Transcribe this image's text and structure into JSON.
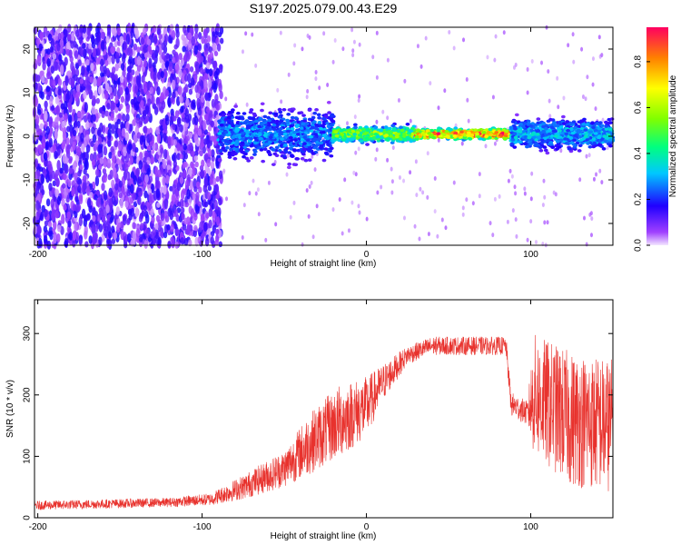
{
  "title": "S197.2025.079.00.43.E29",
  "chart_data": [
    {
      "type": "heatmap",
      "xlabel": "Height of straight line (km)",
      "ylabel": "Frequency (Hz)",
      "xlim": [
        -202,
        150
      ],
      "ylim": [
        -25,
        25
      ],
      "xticks": [
        -200,
        -100,
        0,
        100
      ],
      "yticks": [
        -20,
        -10,
        0,
        10,
        20
      ],
      "colorbar": {
        "label": "Normalized spectral amplitude",
        "range": [
          0,
          0.95
        ],
        "ticks": [
          0,
          0.2,
          0.4,
          0.6,
          0.8
        ]
      },
      "ridge": {
        "frequency": 0.5,
        "segments": [
          {
            "x_start": -90,
            "x_end": -20,
            "amplitude": 0.3,
            "spread": 5
          },
          {
            "x_start": -20,
            "x_end": 30,
            "amplitude": 0.6,
            "spread": 1.5
          },
          {
            "x_start": 30,
            "x_end": 88,
            "amplitude": 0.9,
            "spread": 1
          },
          {
            "x_start": 88,
            "x_end": 150,
            "amplitude": 0.35,
            "spread": 3
          }
        ]
      },
      "noise_region": {
        "x_start": -202,
        "x_end": -88,
        "amplitude": 0.1
      }
    },
    {
      "type": "line",
      "xlabel": "Height of straight line (km)",
      "ylabel": "SNR (10 * v/v)",
      "xlim": [
        -202,
        150
      ],
      "ylim": [
        0,
        355
      ],
      "xticks": [
        -200,
        -100,
        0,
        100
      ],
      "yticks": [
        0,
        100,
        200,
        300
      ],
      "series": [
        {
          "color": "#e8322d",
          "envelope": [
            {
              "x": -202,
              "y": 20,
              "spread": 15
            },
            {
              "x": -120,
              "y": 25,
              "spread": 15
            },
            {
              "x": -95,
              "y": 30,
              "spread": 20
            },
            {
              "x": -75,
              "y": 50,
              "spread": 40
            },
            {
              "x": -50,
              "y": 80,
              "spread": 60
            },
            {
              "x": -35,
              "y": 120,
              "spread": 100
            },
            {
              "x": -15,
              "y": 160,
              "spread": 120
            },
            {
              "x": 0,
              "y": 180,
              "spread": 100
            },
            {
              "x": 10,
              "y": 220,
              "spread": 60
            },
            {
              "x": 25,
              "y": 265,
              "spread": 30
            },
            {
              "x": 40,
              "y": 280,
              "spread": 30
            },
            {
              "x": 60,
              "y": 280,
              "spread": 30
            },
            {
              "x": 85,
              "y": 280,
              "spread": 30
            },
            {
              "x": 88,
              "y": 185,
              "spread": 40
            },
            {
              "x": 98,
              "y": 170,
              "spread": 40
            },
            {
              "x": 102,
              "y": 200,
              "spread": 200
            },
            {
              "x": 125,
              "y": 160,
              "spread": 220
            },
            {
              "x": 150,
              "y": 150,
              "spread": 220
            }
          ]
        }
      ]
    }
  ]
}
